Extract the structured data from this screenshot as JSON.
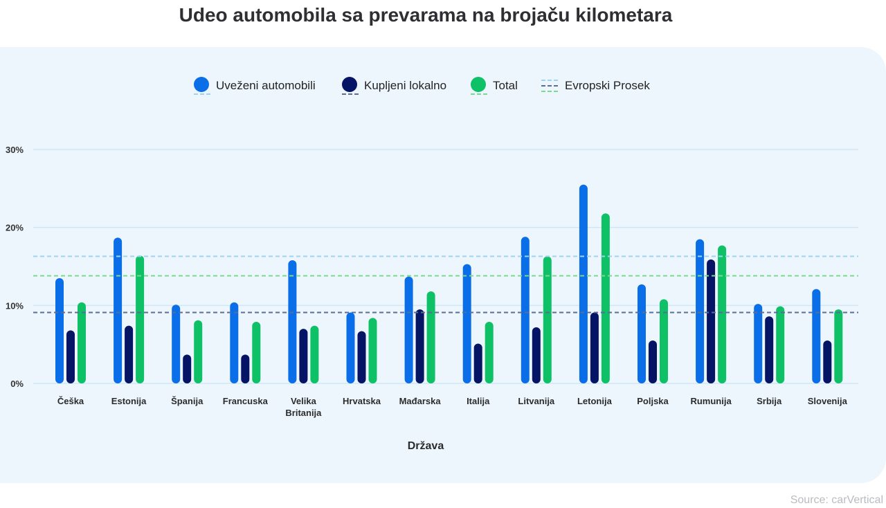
{
  "title": "Udeo automobila sa prevarama na brojaču kilometara",
  "source": "Source: carVertical",
  "legend": {
    "imported": "Uveženi automobili",
    "local": "Kupljeni lokalno",
    "total": "Total",
    "eu_avg": "Evropski Prosek"
  },
  "colors": {
    "imported": "#0a6ee8",
    "local": "#061466",
    "total": "#0ec167",
    "avg_imported": "#9fd4f0",
    "avg_local": "#5b6c99",
    "avg_total": "#7bd98f",
    "grid": "#cfe6f7"
  },
  "chart_data": {
    "type": "bar",
    "title": "Udeo automobila sa prevarama na brojaču kilometara",
    "xlabel": "Država",
    "ylabel": "",
    "ylim": [
      0,
      30
    ],
    "yticks": [
      0,
      10,
      20,
      30
    ],
    "ytick_labels": [
      "0%",
      "10%",
      "20%",
      "30%"
    ],
    "grid": true,
    "legend_position": "top-center",
    "categories": [
      [
        "Češka"
      ],
      [
        "Estonija"
      ],
      [
        "Španija"
      ],
      [
        "Francuska"
      ],
      [
        "Velika",
        "Britanija"
      ],
      [
        "Hrvatska"
      ],
      [
        "Mađarska"
      ],
      [
        "Italija"
      ],
      [
        "Litvanija"
      ],
      [
        "Letonija"
      ],
      [
        "Poljska"
      ],
      [
        "Rumunija"
      ],
      [
        "Srbija"
      ],
      [
        "Slovenija"
      ]
    ],
    "series": [
      {
        "name": "Uveženi automobili",
        "values": [
          13.5,
          18.7,
          10.1,
          10.4,
          15.8,
          9.1,
          13.7,
          15.3,
          18.8,
          25.5,
          12.7,
          18.5,
          10.2,
          12.1
        ]
      },
      {
        "name": "Kupljeni lokalno",
        "values": [
          6.8,
          7.4,
          3.7,
          3.7,
          7.0,
          6.7,
          9.5,
          5.1,
          7.2,
          9.1,
          5.5,
          15.9,
          8.6,
          5.5
        ]
      },
      {
        "name": "Total",
        "values": [
          10.4,
          16.4,
          8.1,
          7.9,
          7.4,
          8.4,
          11.8,
          7.9,
          16.3,
          21.8,
          10.8,
          17.7,
          9.9,
          9.5
        ]
      }
    ],
    "reference_lines": [
      {
        "name": "Evropski Prosek (Uveženi automobili)",
        "value": 16.3
      },
      {
        "name": "Evropski Prosek (Total)",
        "value": 13.8
      },
      {
        "name": "Evropski Prosek (Kupljeni lokalno)",
        "value": 9.1
      }
    ]
  }
}
